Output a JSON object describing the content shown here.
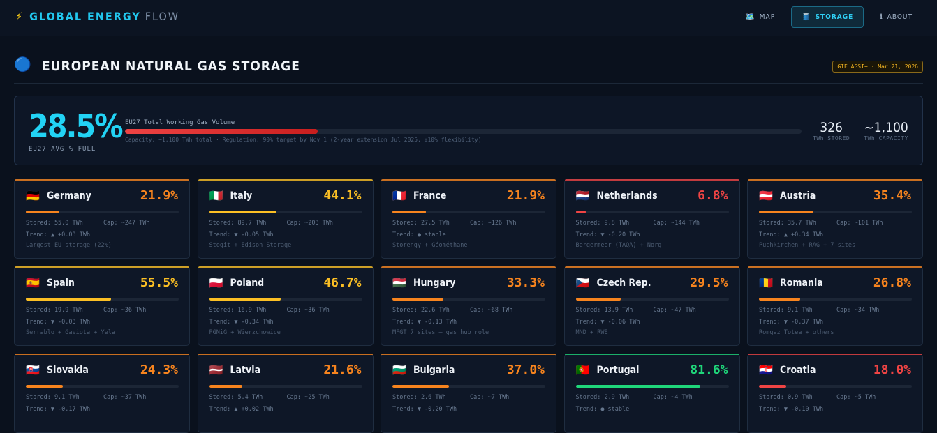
{
  "header": {
    "logo_icon": "⚡",
    "brand": "GLOBAL ENERGY",
    "brand_suffix": "FLOW",
    "nav": [
      {
        "icon": "🗺️",
        "label": "MAP",
        "active": false
      },
      {
        "icon": "🛢️",
        "label": "STORAGE",
        "active": true
      },
      {
        "icon": "ℹ",
        "label": "ABOUT",
        "active": false
      }
    ]
  },
  "section": {
    "icon": "🔵",
    "title": "EUROPEAN NATURAL GAS STORAGE",
    "source": "GIE AGSI+ · Mar 21, 2026"
  },
  "summary": {
    "avg_value": 28.5,
    "avg_label": "28.5%",
    "avg_caption": "EU27 AVG % FULL",
    "bar_title": "EU27 Total Working Gas Volume",
    "note": "Capacity: ~1,100 TWh total · Regulation: 90% target by Nov 1 (2-year extension Jul 2025, ±10% flexibility)",
    "stats": [
      {
        "value": "326",
        "label": "TWh STORED"
      },
      {
        "value": "~1,100",
        "label": "TWh CAPACITY"
      }
    ]
  },
  "cards": [
    {
      "flag": "🇩🇪",
      "name": "Germany",
      "pct": 21.9,
      "pct_label": "21.9%",
      "color": "#f7841e",
      "stored": "Stored: 55.0 TWh",
      "cap": "Cap: ~247 TWh",
      "trend": "Trend: ▲ +0.03 TWh",
      "note": "Largest EU storage (22%)"
    },
    {
      "flag": "🇮🇹",
      "name": "Italy",
      "pct": 44.1,
      "pct_label": "44.1%",
      "color": "#fbbf24",
      "stored": "Stored: 89.7 TWh",
      "cap": "Cap: ~203 TWh",
      "trend": "Trend: ▼ -0.05 TWh",
      "note": "Stogit + Edison Storage"
    },
    {
      "flag": "🇫🇷",
      "name": "France",
      "pct": 21.9,
      "pct_label": "21.9%",
      "color": "#f7841e",
      "stored": "Stored: 27.5 TWh",
      "cap": "Cap: ~126 TWh",
      "trend": "Trend: ● stable",
      "note": "Storengy + Géométhane"
    },
    {
      "flag": "🇳🇱",
      "name": "Netherlands",
      "pct": 6.8,
      "pct_label": "6.8%",
      "color": "#ef4444",
      "stored": "Stored: 9.8 TWh",
      "cap": "Cap: ~144 TWh",
      "trend": "Trend: ▼ -0.20 TWh",
      "note": "Bergermeer (TAQA) + Norg"
    },
    {
      "flag": "🇦🇹",
      "name": "Austria",
      "pct": 35.4,
      "pct_label": "35.4%",
      "color": "#f7841e",
      "stored": "Stored: 35.7 TWh",
      "cap": "Cap: ~101 TWh",
      "trend": "Trend: ▲ +0.34 TWh",
      "note": "Puchkirchen + RAG + 7 sites"
    },
    {
      "flag": "🇪🇸",
      "name": "Spain",
      "pct": 55.5,
      "pct_label": "55.5%",
      "color": "#fbbf24",
      "stored": "Stored: 19.9 TWh",
      "cap": "Cap: ~36 TWh",
      "trend": "Trend: ▼ -0.03 TWh",
      "note": "Serrablo + Gaviota + Yela"
    },
    {
      "flag": "🇵🇱",
      "name": "Poland",
      "pct": 46.7,
      "pct_label": "46.7%",
      "color": "#fbbf24",
      "stored": "Stored: 16.9 TWh",
      "cap": "Cap: ~36 TWh",
      "trend": "Trend: ▼ -0.34 TWh",
      "note": "PGNiG + Wierzchowice"
    },
    {
      "flag": "🇭🇺",
      "name": "Hungary",
      "pct": 33.3,
      "pct_label": "33.3%",
      "color": "#f7841e",
      "stored": "Stored: 22.6 TWh",
      "cap": "Cap: ~68 TWh",
      "trend": "Trend: ▼ -0.13 TWh",
      "note": "MFGT 7 sites — gas hub role"
    },
    {
      "flag": "🇨🇿",
      "name": "Czech Rep.",
      "pct": 29.5,
      "pct_label": "29.5%",
      "color": "#f7841e",
      "stored": "Stored: 13.9 TWh",
      "cap": "Cap: ~47 TWh",
      "trend": "Trend: ▼ -0.06 TWh",
      "note": "MND + RWE"
    },
    {
      "flag": "🇷🇴",
      "name": "Romania",
      "pct": 26.8,
      "pct_label": "26.8%",
      "color": "#f7841e",
      "stored": "Stored: 9.1 TWh",
      "cap": "Cap: ~34 TWh",
      "trend": "Trend: ▼ -0.37 TWh",
      "note": "Romgaz Totea + others"
    },
    {
      "flag": "🇸🇰",
      "name": "Slovakia",
      "pct": 24.3,
      "pct_label": "24.3%",
      "color": "#f7841e",
      "stored": "Stored: 9.1 TWh",
      "cap": "Cap: ~37 TWh",
      "trend": "Trend: ▼ -0.17 TWh"
    },
    {
      "flag": "🇱🇻",
      "name": "Latvia",
      "pct": 21.6,
      "pct_label": "21.6%",
      "color": "#f7841e",
      "stored": "Stored: 5.4 TWh",
      "cap": "Cap: ~25 TWh",
      "trend": "Trend: ▲ +0.02 TWh"
    },
    {
      "flag": "🇧🇬",
      "name": "Bulgaria",
      "pct": 37.0,
      "pct_label": "37.0%",
      "color": "#f7841e",
      "stored": "Stored: 2.6 TWh",
      "cap": "Cap: ~7 TWh",
      "trend": "Trend: ▼ -0.20 TWh"
    },
    {
      "flag": "🇵🇹",
      "name": "Portugal",
      "pct": 81.6,
      "pct_label": "81.6%",
      "color": "#1fd67a",
      "stored": "Stored: 2.9 TWh",
      "cap": "Cap: ~4 TWh",
      "trend": "Trend: ● stable"
    },
    {
      "flag": "🇭🇷",
      "name": "Croatia",
      "pct": 18.0,
      "pct_label": "18.0%",
      "color": "#ef4444",
      "stored": "Stored: 0.9 TWh",
      "cap": "Cap: ~5 TWh",
      "trend": "Trend: ▼ -0.10 TWh"
    }
  ]
}
